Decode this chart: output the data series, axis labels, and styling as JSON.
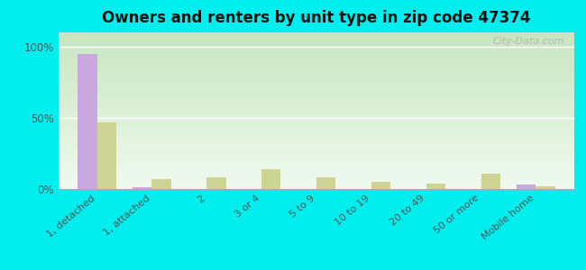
{
  "title": "Owners and renters by unit type in zip code 47374",
  "categories": [
    "1, detached",
    "1, attached",
    "2",
    "3 or 4",
    "5 to 9",
    "10 to 19",
    "20 to 49",
    "50 or more",
    "Mobile home"
  ],
  "owner_values": [
    95,
    1,
    0,
    0,
    0,
    0,
    0,
    0,
    3
  ],
  "renter_values": [
    47,
    7,
    8,
    14,
    8,
    5,
    4,
    11,
    2
  ],
  "owner_color": "#c9a8e0",
  "renter_color": "#cdd494",
  "background_color": "#00eeee",
  "yticks": [
    0,
    50,
    100
  ],
  "ylim": [
    0,
    110
  ],
  "bar_width": 0.35,
  "watermark": "City-Data.com",
  "grad_top": "#c8e6c0",
  "grad_bottom": "#f0faf0"
}
